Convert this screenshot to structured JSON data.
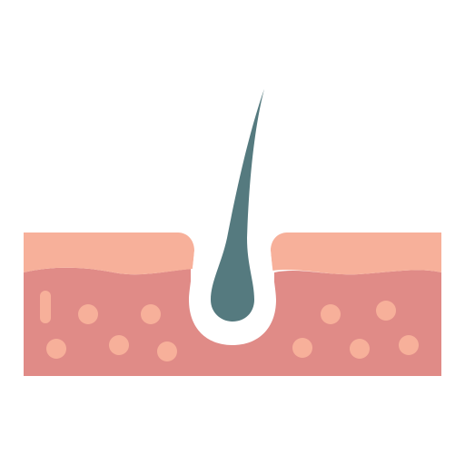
{
  "icon": {
    "name": "hair-follicle-skin-icon",
    "colors": {
      "background": "#ffffff",
      "epidermis": "#f7b09a",
      "dermis": "#e08b87",
      "cells": "#f7b09a",
      "hair": "#557a7f",
      "follicle_opening": "#ffffff"
    }
  }
}
